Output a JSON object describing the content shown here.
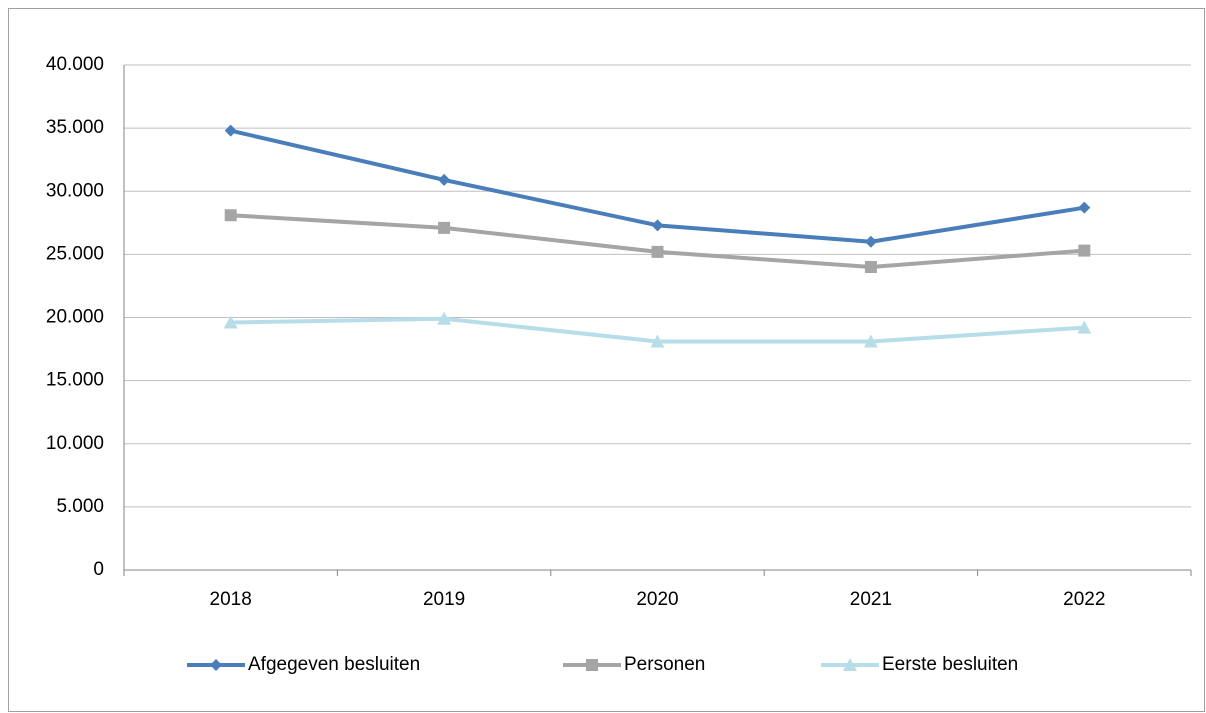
{
  "chart_data": {
    "type": "line",
    "categories": [
      "2018",
      "2019",
      "2020",
      "2021",
      "2022"
    ],
    "series": [
      {
        "name": "Afgegeven besluiten",
        "color": "#4a7ebb",
        "marker": "diamond",
        "values": [
          34800,
          30900,
          27300,
          26000,
          28700
        ]
      },
      {
        "name": "Personen",
        "color": "#a5a5a5",
        "marker": "square",
        "values": [
          28100,
          27100,
          25200,
          24000,
          25300
        ]
      },
      {
        "name": "Eerste besluiten",
        "color": "#b7dee8",
        "marker": "triangle",
        "values": [
          19600,
          19900,
          18100,
          18100,
          19200
        ]
      }
    ],
    "ylim": [
      0,
      40000
    ],
    "yticks": [
      0,
      {
        "value": 5000,
        "label": "5.000"
      },
      {
        "value": 10000,
        "label": "10.000"
      },
      {
        "value": 15000,
        "label": "15.000"
      },
      {
        "value": 20000,
        "label": "20.000"
      },
      {
        "value": 25000,
        "label": "25.000"
      },
      {
        "value": 30000,
        "label": "30.000"
      },
      {
        "value": 35000,
        "label": "35.000"
      },
      {
        "value": 40000,
        "label": "40.000"
      }
    ],
    "grid": true,
    "legend": "bottom"
  }
}
